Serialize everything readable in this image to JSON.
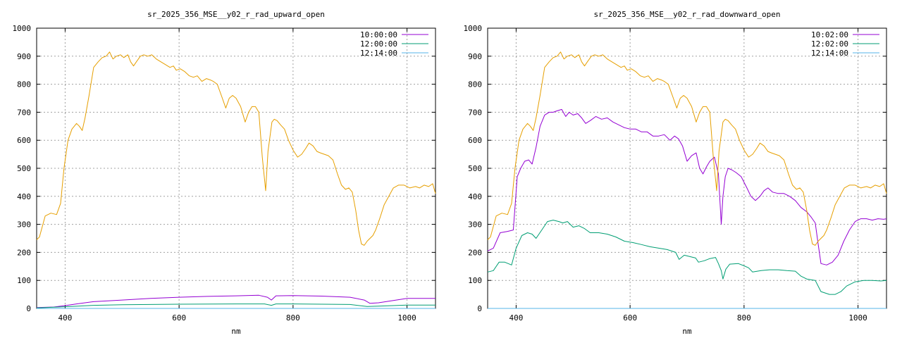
{
  "chart_data": [
    {
      "type": "line",
      "title": "sr_2025_356_MSE__y02_r_rad_upward_open",
      "xlabel": "nm",
      "ylabel": "",
      "xlim": [
        350,
        1050
      ],
      "ylim": [
        0,
        1000
      ],
      "xticks": [
        400,
        600,
        800,
        1000
      ],
      "yticks": [
        0,
        100,
        200,
        300,
        400,
        500,
        600,
        700,
        800,
        900,
        1000
      ],
      "grid": true,
      "legend_position": "top-right",
      "series": [
        {
          "name": "10:00:00",
          "color": "#9400d3",
          "x": [
            350,
            380,
            400,
            420,
            450,
            500,
            550,
            600,
            650,
            700,
            740,
            755,
            762,
            770,
            800,
            850,
            900,
            925,
            935,
            950,
            1000,
            1050
          ],
          "y": [
            3,
            5,
            10,
            16,
            24,
            30,
            36,
            40,
            43,
            45,
            47,
            40,
            30,
            45,
            46,
            44,
            40,
            30,
            18,
            20,
            36,
            36
          ]
        },
        {
          "name": "12:00:00",
          "color": "#009e73",
          "x": [
            350,
            400,
            450,
            500,
            600,
            700,
            750,
            762,
            770,
            800,
            900,
            930,
            950,
            1000,
            1050
          ],
          "y": [
            2,
            6,
            11,
            13,
            15,
            16,
            16,
            11,
            16,
            16,
            14,
            7,
            8,
            12,
            12
          ]
        },
        {
          "name": "12:14:00",
          "color": "#56b4e9",
          "x": [
            350,
            1050
          ],
          "y": [
            0,
            0
          ]
        },
        {
          "name": "",
          "color": "#e69f00",
          "x": [
            350,
            355,
            365,
            375,
            385,
            392,
            398,
            405,
            412,
            420,
            425,
            430,
            435,
            442,
            450,
            458,
            465,
            472,
            478,
            484,
            490,
            497,
            503,
            510,
            515,
            520,
            525,
            532,
            538,
            545,
            552,
            560,
            568,
            576,
            584,
            590,
            595,
            602,
            610,
            618,
            625,
            632,
            640,
            648,
            655,
            660,
            667,
            675,
            682,
            688,
            694,
            700,
            708,
            716,
            722,
            728,
            734,
            740,
            746,
            752,
            756,
            760,
            763,
            767,
            772,
            778,
            785,
            792,
            800,
            808,
            815,
            822,
            828,
            835,
            842,
            848,
            855,
            862,
            870,
            878,
            885,
            892,
            898,
            904,
            910,
            915,
            920,
            925,
            930,
            935,
            940,
            945,
            952,
            960,
            968,
            976,
            985,
            995,
            1005,
            1015,
            1022,
            1030,
            1038,
            1045,
            1050
          ],
          "y": [
            245,
            255,
            330,
            340,
            335,
            375,
            500,
            600,
            640,
            660,
            650,
            635,
            680,
            760,
            860,
            880,
            895,
            900,
            915,
            890,
            900,
            905,
            895,
            905,
            880,
            865,
            880,
            900,
            905,
            900,
            905,
            890,
            880,
            870,
            860,
            865,
            850,
            855,
            845,
            830,
            825,
            830,
            810,
            820,
            815,
            810,
            800,
            755,
            715,
            750,
            760,
            750,
            720,
            665,
            700,
            720,
            720,
            700,
            540,
            420,
            560,
            620,
            665,
            675,
            670,
            655,
            640,
            600,
            565,
            540,
            550,
            570,
            590,
            580,
            560,
            555,
            550,
            545,
            530,
            480,
            440,
            425,
            430,
            415,
            350,
            280,
            230,
            225,
            240,
            250,
            260,
            280,
            320,
            370,
            400,
            430,
            440,
            440,
            430,
            435,
            430,
            440,
            435,
            445,
            410
          ]
        }
      ]
    },
    {
      "type": "line",
      "title": "sr_2025_356_MSE__y02_r_rad_downward_open",
      "xlabel": "nm",
      "ylabel": "",
      "xlim": [
        350,
        1050
      ],
      "ylim": [
        0,
        1000
      ],
      "xticks": [
        400,
        600,
        800,
        1000
      ],
      "yticks": [
        0,
        100,
        200,
        300,
        400,
        500,
        600,
        700,
        800,
        900,
        1000
      ],
      "grid": true,
      "legend_position": "top-right",
      "series": [
        {
          "name": "10:02:00",
          "color": "#9400d3",
          "x": [
            350,
            360,
            372,
            385,
            395,
            402,
            408,
            415,
            422,
            428,
            435,
            442,
            450,
            458,
            465,
            472,
            480,
            487,
            493,
            500,
            508,
            515,
            522,
            530,
            540,
            550,
            560,
            570,
            580,
            590,
            600,
            610,
            620,
            630,
            640,
            650,
            660,
            670,
            678,
            685,
            692,
            700,
            708,
            716,
            722,
            728,
            734,
            740,
            748,
            755,
            760,
            763,
            767,
            772,
            778,
            786,
            795,
            805,
            812,
            820,
            828,
            835,
            842,
            850,
            860,
            870,
            880,
            890,
            900,
            910,
            918,
            925,
            930,
            935,
            945,
            955,
            965,
            975,
            985,
            995,
            1005,
            1015,
            1025,
            1035,
            1045,
            1050
          ],
          "y": [
            205,
            215,
            270,
            275,
            280,
            470,
            500,
            525,
            530,
            515,
            575,
            650,
            690,
            700,
            700,
            705,
            710,
            685,
            700,
            690,
            695,
            680,
            660,
            670,
            685,
            675,
            680,
            665,
            655,
            645,
            640,
            640,
            630,
            630,
            615,
            615,
            620,
            600,
            615,
            605,
            580,
            525,
            545,
            555,
            500,
            480,
            505,
            525,
            540,
            480,
            300,
            400,
            470,
            500,
            495,
            485,
            470,
            430,
            400,
            385,
            400,
            420,
            430,
            415,
            410,
            410,
            400,
            385,
            360,
            345,
            325,
            305,
            230,
            160,
            155,
            165,
            190,
            240,
            280,
            310,
            320,
            320,
            315,
            320,
            318,
            320
          ]
        },
        {
          "name": "12:02:00",
          "color": "#009e73",
          "x": [
            350,
            360,
            370,
            380,
            392,
            400,
            410,
            420,
            428,
            435,
            445,
            455,
            465,
            475,
            482,
            490,
            500,
            510,
            520,
            530,
            545,
            560,
            575,
            590,
            605,
            620,
            635,
            650,
            665,
            680,
            686,
            695,
            705,
            715,
            720,
            730,
            740,
            750,
            755,
            760,
            763,
            768,
            775,
            790,
            800,
            808,
            815,
            830,
            845,
            860,
            875,
            890,
            900,
            910,
            918,
            925,
            935,
            950,
            960,
            970,
            980,
            995,
            1010,
            1025,
            1040,
            1050
          ],
          "y": [
            130,
            135,
            165,
            165,
            155,
            215,
            260,
            270,
            265,
            250,
            280,
            310,
            315,
            310,
            305,
            310,
            290,
            295,
            285,
            270,
            270,
            265,
            255,
            240,
            235,
            228,
            220,
            215,
            210,
            200,
            175,
            190,
            185,
            180,
            165,
            170,
            178,
            182,
            160,
            135,
            105,
            140,
            158,
            160,
            152,
            145,
            130,
            135,
            138,
            138,
            135,
            133,
            115,
            105,
            102,
            100,
            60,
            50,
            50,
            60,
            80,
            95,
            100,
            100,
            98,
            100
          ]
        },
        {
          "name": "12:14:00",
          "color": "#56b4e9",
          "x": [
            350,
            1050
          ],
          "y": [
            0,
            0
          ]
        },
        {
          "name": "",
          "color": "#e69f00",
          "x": [
            350,
            355,
            365,
            375,
            385,
            392,
            398,
            405,
            412,
            420,
            425,
            430,
            435,
            442,
            450,
            458,
            465,
            472,
            478,
            484,
            490,
            497,
            503,
            510,
            515,
            520,
            525,
            532,
            538,
            545,
            552,
            560,
            568,
            576,
            584,
            590,
            595,
            602,
            610,
            618,
            625,
            632,
            640,
            648,
            655,
            660,
            667,
            675,
            682,
            688,
            694,
            700,
            708,
            716,
            722,
            728,
            734,
            740,
            746,
            752,
            756,
            760,
            763,
            767,
            772,
            778,
            785,
            792,
            800,
            808,
            815,
            822,
            828,
            835,
            842,
            848,
            855,
            862,
            870,
            878,
            885,
            892,
            898,
            904,
            910,
            915,
            920,
            925,
            930,
            935,
            940,
            945,
            952,
            960,
            968,
            976,
            985,
            995,
            1005,
            1015,
            1022,
            1030,
            1038,
            1045,
            1050
          ],
          "y": [
            245,
            255,
            330,
            340,
            335,
            375,
            500,
            600,
            640,
            660,
            650,
            635,
            680,
            760,
            860,
            880,
            895,
            900,
            915,
            890,
            900,
            905,
            895,
            905,
            880,
            865,
            880,
            900,
            905,
            900,
            905,
            890,
            880,
            870,
            860,
            865,
            850,
            855,
            845,
            830,
            825,
            830,
            810,
            820,
            815,
            810,
            800,
            755,
            715,
            750,
            760,
            750,
            720,
            665,
            700,
            720,
            720,
            700,
            540,
            420,
            560,
            620,
            665,
            675,
            670,
            655,
            640,
            600,
            565,
            540,
            550,
            570,
            590,
            580,
            560,
            555,
            550,
            545,
            530,
            480,
            440,
            425,
            430,
            415,
            350,
            280,
            230,
            225,
            240,
            250,
            260,
            280,
            320,
            370,
            400,
            430,
            440,
            440,
            430,
            435,
            430,
            440,
            435,
            445,
            410
          ]
        }
      ]
    }
  ]
}
